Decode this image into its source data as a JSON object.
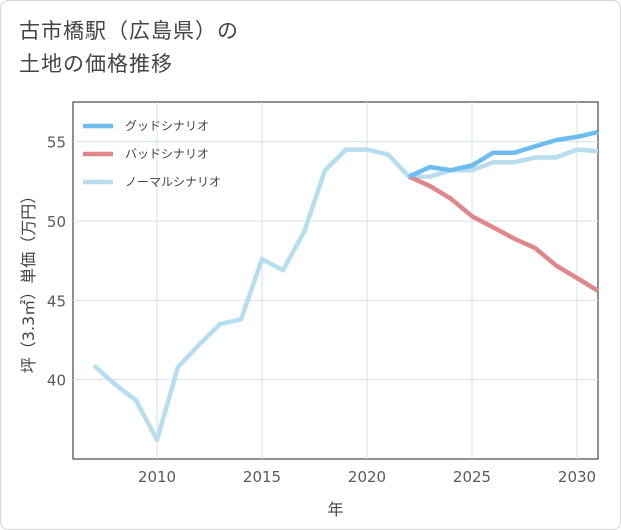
{
  "title_line1": "古市橋駅（広島県）の",
  "title_line2": "土地の価格推移",
  "chart_data": {
    "type": "line",
    "xlabel": "年",
    "ylabel": "坪（3.3㎡）単価（万円）",
    "xlim": [
      2006,
      2031
    ],
    "ylim": [
      35,
      57.5
    ],
    "xticks": [
      2010,
      2015,
      2020,
      2025,
      2030
    ],
    "yticks": [
      40,
      45,
      50,
      55
    ],
    "grid": true,
    "legend_position": "top-left",
    "series": [
      {
        "name": "グッドシナリオ",
        "color": "#6cbdee",
        "x": [
          2022,
          2023,
          2024,
          2025,
          2026,
          2027,
          2028,
          2029,
          2030,
          2031
        ],
        "y": [
          52.8,
          53.4,
          53.2,
          53.5,
          54.3,
          54.3,
          54.7,
          55.1,
          55.3,
          55.6
        ]
      },
      {
        "name": "バッドシナリオ",
        "color": "#e0868c",
        "x": [
          2022,
          2023,
          2024,
          2025,
          2026,
          2027,
          2028,
          2029,
          2030,
          2031
        ],
        "y": [
          52.8,
          52.2,
          51.4,
          50.3,
          49.6,
          48.9,
          48.3,
          47.2,
          46.4,
          45.6
        ]
      },
      {
        "name": "ノーマルシナリオ",
        "color": "#b7ddef",
        "x": [
          2007,
          2008,
          2009,
          2010,
          2011,
          2012,
          2013,
          2014,
          2015,
          2016,
          2017,
          2018,
          2019,
          2020,
          2021,
          2022,
          2023,
          2024,
          2025,
          2026,
          2027,
          2028,
          2029,
          2030,
          2031
        ],
        "y": [
          40.9,
          39.7,
          38.7,
          36.2,
          40.8,
          42.2,
          43.5,
          43.8,
          47.6,
          46.9,
          49.3,
          53.2,
          54.5,
          54.5,
          54.2,
          52.8,
          52.8,
          53.2,
          53.2,
          53.7,
          53.7,
          54.0,
          54.0,
          54.5,
          54.4
        ]
      }
    ]
  }
}
